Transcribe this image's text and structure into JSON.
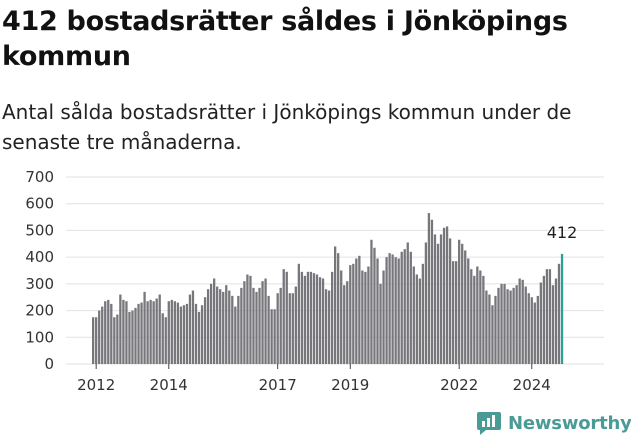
{
  "header": {
    "title": "412 bostadsrätter såldes i Jönköpings kommun",
    "subtitle": "Antal sålda bostadsrätter i Jönköpings kommun under de senaste tre månaderna."
  },
  "brand": {
    "name": "Newsworthy",
    "icon": "newsworthy-chart-icon",
    "color": "#4a9b95"
  },
  "colors": {
    "bar": "#77767b",
    "highlight": "#2aa198",
    "grid": "#e2e2e2"
  },
  "chart_data": {
    "type": "bar",
    "title": "",
    "xlabel": "",
    "ylabel": "",
    "ylim": [
      0,
      700
    ],
    "y_ticks": [
      0,
      100,
      200,
      300,
      400,
      500,
      600,
      700
    ],
    "grid": true,
    "x_ticks": [
      {
        "label": "2012",
        "index": 1
      },
      {
        "label": "2014",
        "index": 25
      },
      {
        "label": "2017",
        "index": 61
      },
      {
        "label": "2019",
        "index": 85
      },
      {
        "label": "2022",
        "index": 121
      },
      {
        "label": "2024",
        "index": 145
      }
    ],
    "series": [
      {
        "values": [
          175,
          175,
          200,
          215,
          235,
          240,
          225,
          175,
          185,
          260,
          240,
          235,
          195,
          200,
          210,
          225,
          230,
          270,
          235,
          240,
          235,
          245,
          260,
          190,
          175,
          235,
          240,
          235,
          230,
          215,
          220,
          225,
          260,
          275,
          225,
          195,
          220,
          250,
          280,
          300,
          320,
          290,
          280,
          270,
          295,
          275,
          255,
          215,
          255,
          285,
          310,
          335,
          330,
          285,
          270,
          285,
          310,
          320,
          255,
          205,
          205,
          265,
          285,
          355,
          345,
          265,
          265,
          290,
          375,
          345,
          330,
          345,
          345,
          340,
          335,
          325,
          320,
          280,
          275,
          345,
          440,
          415,
          350,
          295,
          310,
          370,
          375,
          395,
          405,
          350,
          345,
          365,
          465,
          435,
          395,
          300,
          350,
          400,
          415,
          410,
          400,
          395,
          420,
          430,
          455,
          420,
          365,
          335,
          320,
          375,
          455,
          565,
          540,
          485,
          450,
          485,
          510,
          515,
          470,
          385,
          385,
          465,
          450,
          425,
          395,
          355,
          330,
          365,
          350,
          330,
          275,
          260,
          220,
          255,
          285,
          300,
          300,
          280,
          275,
          285,
          295,
          320,
          315,
          290,
          265,
          250,
          230,
          255,
          305,
          330,
          355,
          355,
          295,
          320,
          375
        ],
        "highlight": {
          "value": 412,
          "label": "412"
        }
      }
    ]
  }
}
